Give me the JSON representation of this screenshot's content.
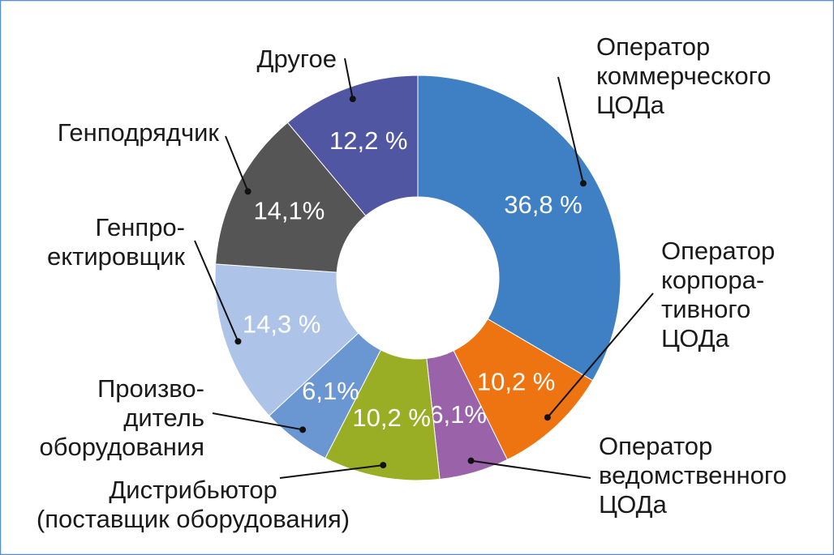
{
  "chart_data": {
    "type": "donut",
    "categories": [
      "Оператор\nкоммерческого\nЦОДа",
      "Оператор\nкорпора-\nтивного\nЦОДа",
      "Оператор\nведомственного\nЦОДа",
      "Дистрибьютор\n(поставщик оборудования)",
      "Произво-\nдитель\nоборудования",
      "Генпро-\nектировщик",
      "Генподрядчик",
      "Другое"
    ],
    "values": [
      36.8,
      10.2,
      6.1,
      10.2,
      6.1,
      14.3,
      14.1,
      12.2
    ],
    "value_labels": [
      "36,8 %",
      "10,2 %",
      "6,1%",
      "10,2 %",
      "6,1%",
      "14,3 %",
      "14,1%",
      "12,2 %"
    ],
    "colors": [
      "#3f7fc4",
      "#ee7411",
      "#9a62a8",
      "#9aae25",
      "#6a96d1",
      "#aec3e8",
      "#555555",
      "#5156a3"
    ]
  }
}
